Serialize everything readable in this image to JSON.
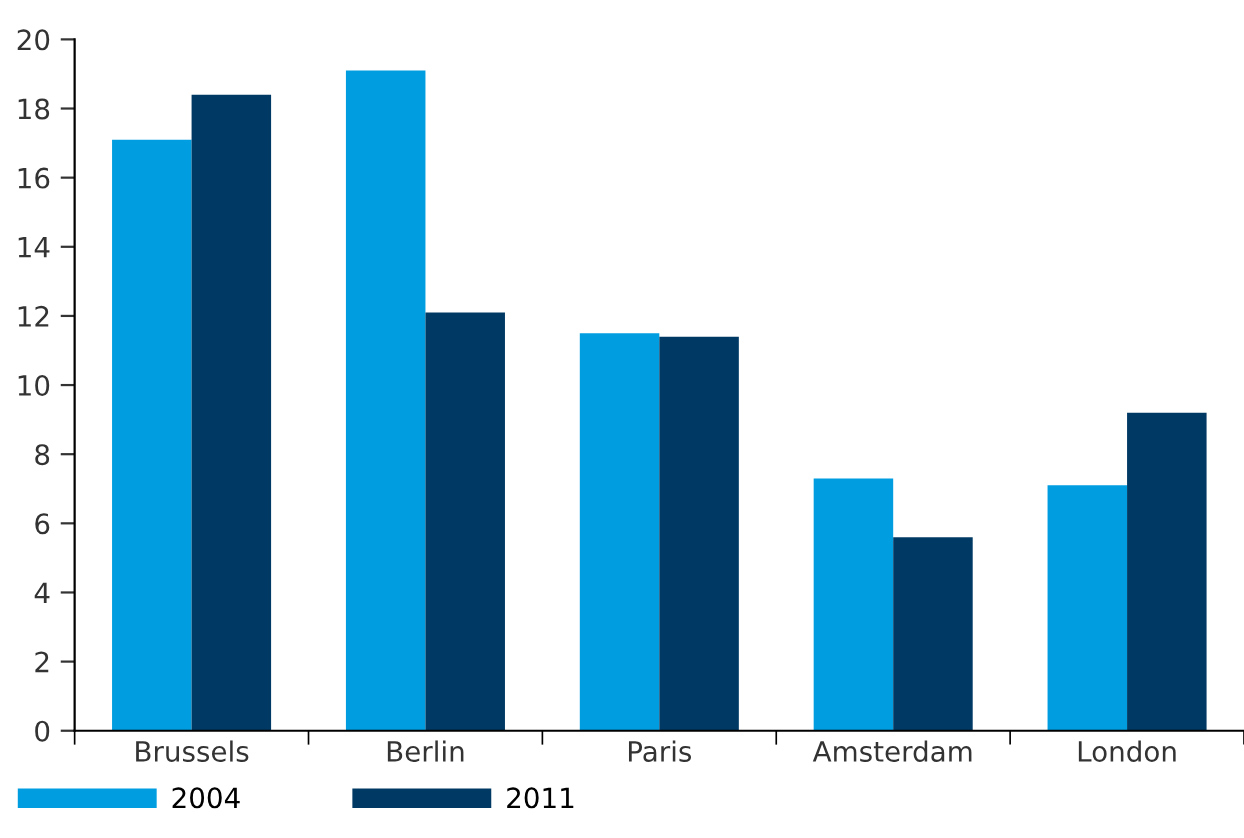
{
  "chart_data": {
    "type": "bar",
    "categories": [
      "Brussels",
      "Berlin",
      "Paris",
      "Amsterdam",
      "London"
    ],
    "series": [
      {
        "name": "2004",
        "color": "#009ee0",
        "values": [
          17.1,
          19.1,
          11.5,
          7.3,
          7.1
        ]
      },
      {
        "name": "2011",
        "color": "#003a64",
        "values": [
          18.4,
          12.1,
          11.4,
          5.6,
          9.2
        ]
      }
    ],
    "ylim": [
      0,
      20
    ],
    "yticks": [
      0,
      2,
      4,
      6,
      8,
      10,
      12,
      14,
      16,
      18,
      20
    ],
    "grid": false,
    "legend": "bottom left"
  }
}
